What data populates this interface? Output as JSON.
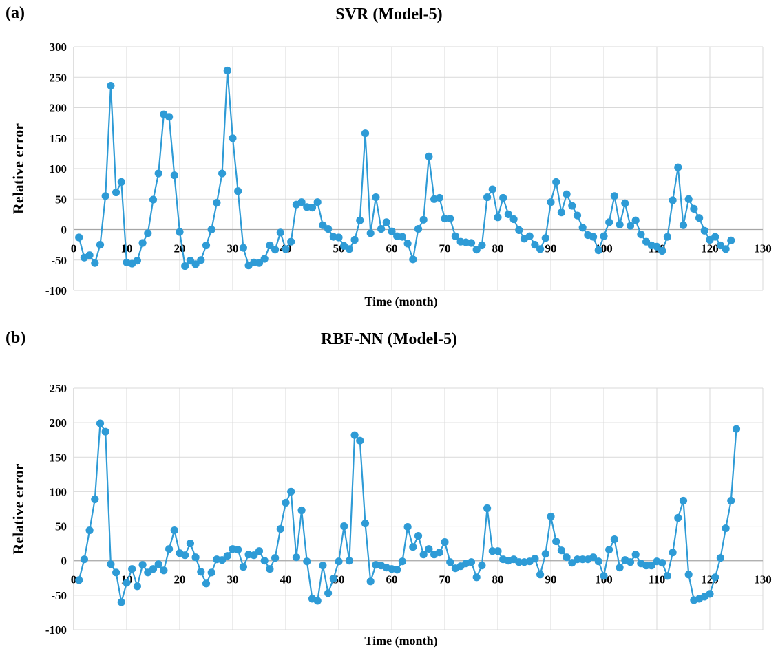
{
  "chart_data": [
    {
      "type": "line",
      "panel_label": "(a)",
      "title": "SVR (Model-5)",
      "xlabel": "Time (month)",
      "ylabel": "Relative error",
      "xlim": [
        0,
        130
      ],
      "ylim": [
        -100,
        300
      ],
      "xticks": [
        0,
        10,
        20,
        30,
        40,
        50,
        60,
        70,
        80,
        90,
        100,
        110,
        120,
        130
      ],
      "yticks": [
        -100,
        -50,
        0,
        50,
        100,
        150,
        200,
        250,
        300
      ],
      "grid": true,
      "color": "#2e9bd6",
      "series": [
        {
          "values": [
            -13,
            -46,
            -42,
            -55,
            -25,
            55,
            236,
            61,
            78,
            -54,
            -56,
            -51,
            -22,
            -6,
            49,
            92,
            189,
            185,
            89,
            -4,
            -60,
            -51,
            -57,
            -50,
            -26,
            0,
            44,
            92,
            261,
            150,
            63,
            -30,
            -59,
            -54,
            -55,
            -48,
            -26,
            -33,
            -5,
            -32,
            -20,
            41,
            45,
            37,
            36,
            45,
            7,
            1,
            -12,
            -13,
            -27,
            -32,
            -17,
            15,
            158,
            -6,
            53,
            1,
            12,
            -3,
            -11,
            -12,
            -23,
            -49,
            1,
            16,
            120,
            50,
            52,
            18,
            18,
            -11,
            -20,
            -21,
            -22,
            -33,
            -26,
            53,
            66,
            20,
            52,
            25,
            17,
            -1,
            -15,
            -11,
            -25,
            -32,
            -14,
            45,
            78,
            28,
            58,
            39,
            23,
            3,
            -9,
            -12,
            -34,
            -11,
            12,
            55,
            8,
            43,
            6,
            15,
            -8,
            -20,
            -26,
            -28,
            -35,
            -12,
            48,
            102,
            7,
            50,
            34,
            19,
            -2,
            -17,
            -12,
            -26,
            -32,
            -18
          ]
        }
      ]
    },
    {
      "type": "line",
      "panel_label": "(b)",
      "title": "RBF-NN (Model-5)",
      "xlabel": "Time (month)",
      "ylabel": "Relative error",
      "xlim": [
        0,
        130
      ],
      "ylim": [
        -100,
        250
      ],
      "xticks": [
        0,
        10,
        20,
        30,
        40,
        50,
        60,
        70,
        80,
        90,
        100,
        110,
        120,
        130
      ],
      "yticks": [
        -100,
        -50,
        0,
        50,
        100,
        150,
        200,
        250
      ],
      "grid": true,
      "color": "#2e9bd6",
      "series": [
        {
          "values": [
            -28,
            2,
            44,
            89,
            199,
            187,
            -5,
            -17,
            -60,
            -32,
            -12,
            -37,
            -6,
            -17,
            -12,
            -5,
            -14,
            17,
            44,
            11,
            8,
            25,
            5,
            -16,
            -33,
            -17,
            2,
            1,
            7,
            17,
            16,
            -9,
            9,
            8,
            14,
            0,
            -12,
            4,
            46,
            84,
            100,
            5,
            73,
            -1,
            -55,
            -58,
            -7,
            -47,
            -26,
            -1,
            50,
            0,
            182,
            174,
            54,
            -30,
            -6,
            -7,
            -10,
            -12,
            -13,
            -1,
            49,
            20,
            36,
            9,
            17,
            9,
            12,
            27,
            -2,
            -11,
            -8,
            -4,
            -2,
            -24,
            -7,
            76,
            14,
            14,
            2,
            0,
            2,
            -2,
            -2,
            -1,
            3,
            -20,
            10,
            64,
            28,
            15,
            5,
            -3,
            2,
            2,
            2,
            5,
            -1,
            -22,
            16,
            31,
            -10,
            1,
            -2,
            9,
            -4,
            -7,
            -7,
            -1,
            -3,
            -22,
            12,
            62,
            87,
            -20,
            -57,
            -55,
            -52,
            -48,
            -24,
            4,
            47,
            87,
            191
          ]
        }
      ]
    }
  ]
}
